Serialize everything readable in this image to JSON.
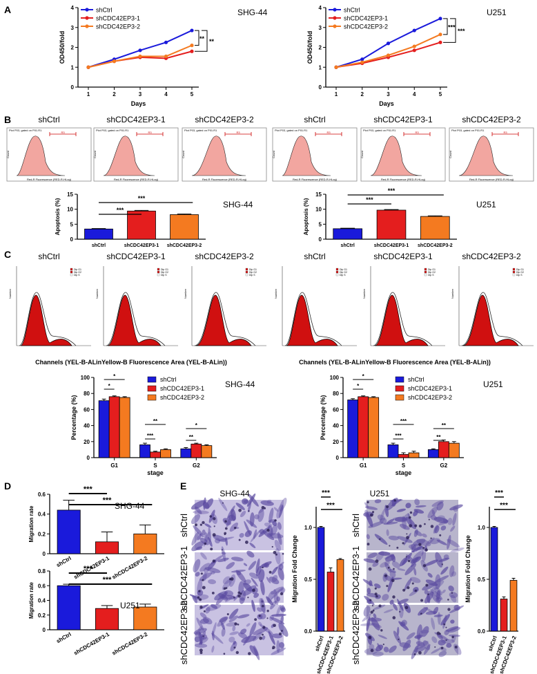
{
  "colors": {
    "ctrl": "#1a1adb",
    "kd1": "#e41e1e",
    "kd2": "#f47a20",
    "hist": "#f2a6a0",
    "phase": "#d01010",
    "micro": "#5a4aa0"
  },
  "panel_labels": [
    "A",
    "B",
    "C",
    "D",
    "E"
  ],
  "cell_lines": [
    "SHG-44",
    "U251"
  ],
  "groups": [
    "shCtrl",
    "shCDC42EP3-1",
    "shCDC42EP3-2"
  ],
  "flow_header": "Plot P03, gated on P01.R1",
  "flow_xaxis": "Red-R Fluorescence (RED-R-HLog)",
  "flow_yaxis": "Count",
  "flow_gate": "R3",
  "cycle_xaxis": "Channels (YEL-B-ALinYellow-B Fluorescence Area (YEL-B-ALin))",
  "cycle_yaxis": "Number",
  "cycle_legend": [
    "Dip G1",
    "Dip G2",
    "Dip S"
  ],
  "sig": {
    "three": "***",
    "two": "**",
    "one": "*"
  },
  "chart_data": [
    {
      "id": "A1",
      "type": "line",
      "panel": "A",
      "title": "SHG-44",
      "xlabel": "Days",
      "ylabel": "OD450/fold",
      "x": [
        1,
        2,
        3,
        4,
        5
      ],
      "ylim": [
        0,
        4
      ],
      "yticks": [
        0,
        1,
        2,
        3,
        4
      ],
      "series": [
        {
          "name": "shCtrl",
          "values": [
            1.0,
            1.4,
            1.85,
            2.25,
            2.85
          ]
        },
        {
          "name": "shCDC42EP3-1",
          "values": [
            1.0,
            1.3,
            1.5,
            1.45,
            1.8
          ]
        },
        {
          "name": "shCDC42EP3-2",
          "values": [
            1.0,
            1.3,
            1.55,
            1.55,
            2.1
          ]
        }
      ],
      "annotations": [
        "**",
        "**"
      ]
    },
    {
      "id": "A2",
      "type": "line",
      "panel": "A",
      "title": "U251",
      "xlabel": "Days",
      "ylabel": "OD450/fold",
      "x": [
        1,
        2,
        3,
        4,
        5
      ],
      "ylim": [
        0,
        4
      ],
      "yticks": [
        0,
        1,
        2,
        3,
        4
      ],
      "series": [
        {
          "name": "shCtrl",
          "values": [
            1.0,
            1.4,
            2.2,
            2.85,
            3.45
          ]
        },
        {
          "name": "shCDC42EP3-1",
          "values": [
            1.0,
            1.2,
            1.5,
            1.85,
            2.25
          ]
        },
        {
          "name": "shCDC42EP3-2",
          "values": [
            1.0,
            1.25,
            1.6,
            2.05,
            2.65
          ]
        }
      ],
      "annotations": [
        "***",
        "***"
      ]
    },
    {
      "id": "B1",
      "type": "bar",
      "panel": "B",
      "title": "SHG-44",
      "ylabel": "Apoptosis (%)",
      "categories": [
        "shCtrl",
        "shCDC42EP3-1",
        "shCDC42EP3-2"
      ],
      "values": [
        3.4,
        9.4,
        8.2
      ],
      "errors": [
        0.15,
        0.2,
        0.2
      ],
      "ylim": [
        0,
        15
      ],
      "yticks": [
        0,
        5,
        10,
        15
      ],
      "annotations": [
        "***",
        "***"
      ]
    },
    {
      "id": "B2",
      "type": "bar",
      "panel": "B",
      "title": "U251",
      "ylabel": "Apoptosis (%)",
      "categories": [
        "shCtrl",
        "shCDC42EP3-1",
        "shCDC42EP3-2"
      ],
      "values": [
        3.5,
        9.7,
        7.6
      ],
      "errors": [
        0.15,
        0.2,
        0.2
      ],
      "ylim": [
        0,
        15
      ],
      "yticks": [
        0,
        5,
        10,
        15
      ],
      "annotations": [
        "***",
        "***"
      ]
    },
    {
      "id": "C1",
      "type": "bar",
      "panel": "C",
      "title": "SHG-44",
      "xlabel": "stage",
      "ylabel": "Percentage (%)",
      "categories": [
        "G1",
        "S",
        "G2"
      ],
      "series": [
        {
          "name": "shCtrl",
          "values": [
            71,
            16,
            11
          ],
          "errors": [
            2,
            2,
            1.5
          ]
        },
        {
          "name": "shCDC42EP3-1",
          "values": [
            76,
            7,
            17
          ],
          "errors": [
            1,
            1,
            1
          ]
        },
        {
          "name": "shCDC42EP3-2",
          "values": [
            75,
            10,
            15
          ],
          "errors": [
            1,
            1,
            1
          ]
        }
      ],
      "ylim": [
        0,
        100
      ],
      "yticks": [
        0,
        20,
        40,
        60,
        80,
        100
      ],
      "annotations": [
        "*",
        "*",
        "**",
        "***",
        "*",
        "**"
      ]
    },
    {
      "id": "C2",
      "type": "bar",
      "panel": "C",
      "title": "U251",
      "xlabel": "stage",
      "ylabel": "Percentage (%)",
      "categories": [
        "G1",
        "S",
        "G2"
      ],
      "series": [
        {
          "name": "shCtrl",
          "values": [
            72,
            16,
            10
          ],
          "errors": [
            1.5,
            2,
            1
          ]
        },
        {
          "name": "shCDC42EP3-1",
          "values": [
            76,
            4,
            20
          ],
          "errors": [
            1,
            2,
            2
          ]
        },
        {
          "name": "shCDC42EP3-2",
          "values": [
            75,
            6,
            18
          ],
          "errors": [
            1,
            2,
            2
          ]
        }
      ],
      "ylim": [
        0,
        100
      ],
      "yticks": [
        0,
        20,
        40,
        60,
        80,
        100
      ],
      "annotations": [
        "*",
        "*",
        "***",
        "***",
        "**",
        "**"
      ]
    },
    {
      "id": "D1",
      "type": "bar",
      "panel": "D",
      "title": "SHG-44",
      "ylabel": "Migration rate",
      "categories": [
        "shCtrl",
        "shCDC42EP3-1",
        "shCDC42EP3-2"
      ],
      "values": [
        0.44,
        0.12,
        0.2
      ],
      "errors": [
        0.1,
        0.1,
        0.09
      ],
      "ylim": [
        0,
        0.6
      ],
      "yticks": [
        0,
        0.2,
        0.4,
        0.6
      ],
      "annotations": [
        "***",
        "***"
      ]
    },
    {
      "id": "D2",
      "type": "bar",
      "panel": "D",
      "title": "U251",
      "ylabel": "Migration rate",
      "categories": [
        "shCtrl",
        "shCDC42EP3-1",
        "shCDC42EP3-2"
      ],
      "values": [
        0.6,
        0.29,
        0.31
      ],
      "errors": [
        0.02,
        0.04,
        0.04
      ],
      "ylim": [
        0,
        0.8
      ],
      "yticks": [
        0,
        0.2,
        0.4,
        0.6,
        0.8
      ],
      "annotations": [
        "***",
        "***"
      ]
    },
    {
      "id": "E1",
      "type": "bar",
      "panel": "E",
      "title": "SHG-44",
      "ylabel": "Migration Fold Change",
      "categories": [
        "shCtrl",
        "shCDC42EP3-1",
        "shCDC42EP3-2"
      ],
      "values": [
        1.0,
        0.57,
        0.69
      ],
      "errors": [
        0.01,
        0.04,
        0.01
      ],
      "ylim": [
        0,
        1.2
      ],
      "yticks": [
        0,
        0.5,
        1.0
      ],
      "annotations": [
        "***",
        "***"
      ]
    },
    {
      "id": "E2",
      "type": "bar",
      "panel": "E",
      "title": "U251",
      "ylabel": "Migration Fold Change",
      "categories": [
        "shCtrl",
        "shCDC42EP3-1",
        "shCDC42EP3-2"
      ],
      "values": [
        1.0,
        0.31,
        0.49
      ],
      "errors": [
        0.01,
        0.02,
        0.02
      ],
      "ylim": [
        0,
        1.2
      ],
      "yticks": [
        0,
        0.5,
        1.0
      ],
      "annotations": [
        "***",
        "***"
      ]
    }
  ]
}
